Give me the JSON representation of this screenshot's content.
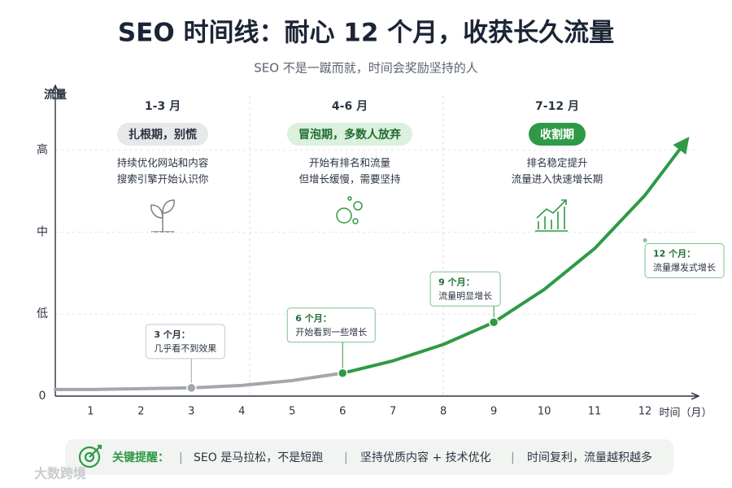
{
  "chart_data": {
    "type": "line",
    "title": "SEO 时间线：耐心 12 个月，收获长久流量",
    "subtitle": "SEO 不是一蹴而就，时间会奖励坚持的人",
    "y_label": "流量",
    "x_label": "时间（月）",
    "xlim": [
      0.3,
      13
    ],
    "xticks": [
      1,
      2,
      3,
      4,
      5,
      6,
      7,
      8,
      9,
      10,
      11,
      12
    ],
    "ylim": [
      0,
      3.8
    ],
    "yticks": [
      0,
      {
        "value": 1,
        "label": "低"
      },
      {
        "value": 2,
        "label": "中"
      },
      {
        "value": 3,
        "label": "高"
      }
    ],
    "grid": true,
    "series": [
      {
        "color": "#a3a7ab",
        "x": [
          0.3,
          1,
          2,
          3,
          4,
          5,
          6
        ],
        "values": [
          0.08,
          0.08,
          0.09,
          0.1,
          0.13,
          0.19,
          0.28
        ]
      },
      {
        "color": "#2e9a45",
        "x": [
          6,
          7,
          8,
          9,
          10,
          11,
          12,
          12.8
        ],
        "values": [
          0.28,
          0.43,
          0.63,
          0.9,
          1.3,
          1.8,
          2.45,
          3.1
        ]
      }
    ],
    "annotations": [
      {
        "title": "3 个月：",
        "text": "几乎看不到效果",
        "x": 3,
        "y": 0.1
      },
      {
        "title": "6 个月：",
        "text": "开始看到一些增长",
        "x": 6,
        "y": 0.28
      },
      {
        "title": "9 个月：",
        "text": "流量明显增长",
        "x": 9,
        "y": 0.9
      },
      {
        "title": "12 个月：",
        "text": "流量爆发式增长",
        "x": 12,
        "y": 1.9
      }
    ],
    "phases": [
      {
        "period": "1-3 月",
        "badge": "扎根期，别慌",
        "badge_color": "#e7e8e9",
        "badge_text_color": "#2b3442",
        "lines": [
          "持续优化网站和内容",
          "搜索引擎开始认识你"
        ]
      },
      {
        "period": "4-6 月",
        "badge": "冒泡期，多数人放弃",
        "badge_color": "#dcf0de",
        "badge_text_color": "#1f6e31",
        "lines": [
          "开始有排名和流量",
          "但增长缓慢，需要坚持"
        ]
      },
      {
        "period": "7-12 月",
        "badge": "收割期",
        "badge_color": "#2e9a45",
        "badge_text_color": "#ffffff",
        "lines": [
          "排名稳定提升",
          "流量进入快速增长期"
        ]
      }
    ],
    "footer": {
      "label": "关键提醒：",
      "items": [
        "SEO 是马拉松，不是短跑",
        "坚持优质内容 + 技术优化",
        "时间复利，流量越积越多"
      ]
    },
    "watermark": "大数跨境"
  }
}
